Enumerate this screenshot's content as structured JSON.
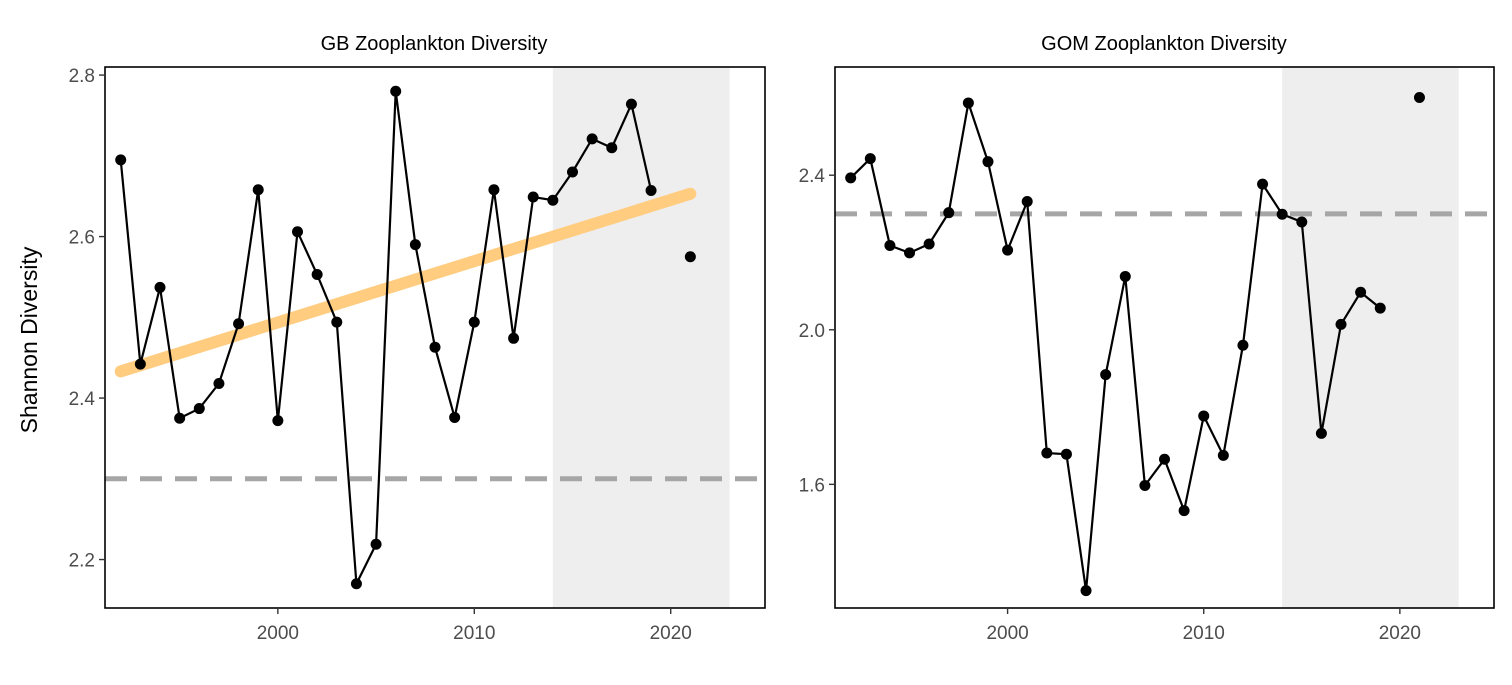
{
  "chart_data": [
    {
      "type": "line",
      "title": "GB Zooplankton Diversity",
      "ylabel": "Shannon Diversity",
      "xlabel": "",
      "xlim": [
        1991.2,
        2024.8
      ],
      "ylim": [
        2.14,
        2.81
      ],
      "x_ticks": [
        "2000",
        "2010",
        "2020"
      ],
      "y_ticks": [
        "2.2",
        "2.4",
        "2.6",
        "2.8"
      ],
      "grid": false,
      "shaded_period": [
        2014,
        2023
      ],
      "reference_line": {
        "y": 2.3,
        "style": "dashed",
        "color": "#a6a6a6"
      },
      "trend_line": {
        "x": [
          1992,
          2021
        ],
        "y": [
          2.433,
          2.653
        ],
        "color": "#ffcc80"
      },
      "series": [
        {
          "type": "line-points",
          "x": [
            1992,
            1993,
            1994,
            1995,
            1996,
            1997,
            1998,
            1999,
            2000,
            2001,
            2002,
            2003,
            2004,
            2005,
            2006,
            2007,
            2008,
            2009,
            2010,
            2011,
            2012,
            2013,
            2014,
            2015,
            2016,
            2017,
            2018,
            2019
          ],
          "y": [
            2.695,
            2.442,
            2.537,
            2.375,
            2.387,
            2.418,
            2.492,
            2.658,
            2.372,
            2.606,
            2.553,
            2.494,
            2.17,
            2.219,
            2.78,
            2.59,
            2.463,
            2.376,
            2.494,
            2.658,
            2.474,
            2.649,
            2.645,
            2.68,
            2.721,
            2.71,
            2.764,
            2.657
          ]
        },
        {
          "type": "points",
          "x": [
            2021
          ],
          "y": [
            2.575
          ]
        }
      ]
    },
    {
      "type": "line",
      "title": "GOM Zooplankton Diversity",
      "ylabel": "",
      "xlabel": "",
      "xlim": [
        1991.2,
        2024.8
      ],
      "ylim": [
        1.28,
        2.68
      ],
      "x_ticks": [
        "2000",
        "2010",
        "2020"
      ],
      "y_ticks": [
        "1.6",
        "2.0",
        "2.4"
      ],
      "grid": false,
      "shaded_period": [
        2014,
        2023
      ],
      "reference_line": {
        "y": 2.3,
        "style": "dashed",
        "color": "#a6a6a6"
      },
      "series": [
        {
          "type": "line-points",
          "x": [
            1992,
            1993,
            1994,
            1995,
            1996,
            1997,
            1998,
            1999,
            2000,
            2001,
            2002,
            2003,
            2004,
            2005,
            2006,
            2007,
            2008,
            2009,
            2010,
            2011,
            2012,
            2013,
            2014,
            2015,
            2016,
            2017,
            2018,
            2019
          ],
          "y": [
            2.393,
            2.443,
            2.218,
            2.199,
            2.222,
            2.303,
            2.587,
            2.435,
            2.206,
            2.332,
            1.681,
            1.678,
            1.325,
            1.884,
            2.138,
            1.597,
            1.665,
            1.532,
            1.777,
            1.675,
            1.96,
            2.377,
            2.299,
            2.279,
            1.732,
            2.014,
            2.097,
            2.056
          ]
        },
        {
          "type": "points",
          "x": [
            2021
          ],
          "y": [
            2.601
          ]
        }
      ]
    }
  ]
}
